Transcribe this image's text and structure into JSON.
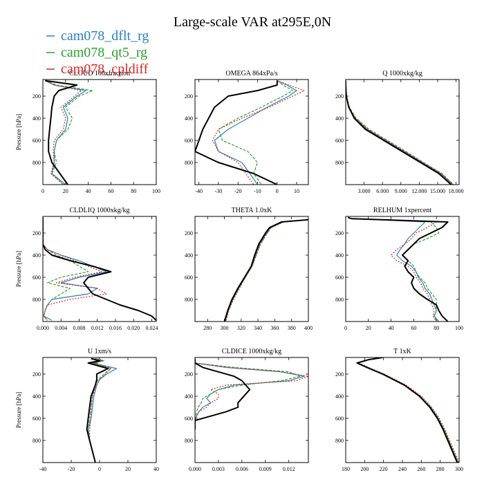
{
  "title": "Large-scale VAR at295E,0N",
  "colors": {
    "dflt": "#2a7fc0",
    "qt5": "#2ca02c",
    "cpldiff": "#d62728",
    "obs": "#000000"
  },
  "legend": [
    {
      "name": "cam078_dflt_rg",
      "color": "#2a7fc0"
    },
    {
      "name": "cam078_qt5_rg",
      "color": "#2ca02c"
    },
    {
      "name": "cam078_cpldiff",
      "color": "#d62728"
    }
  ],
  "chart_data": [
    {
      "type": "line",
      "title": "CLOUD 100xfraction",
      "ylabel": "Pressure [hPa]",
      "xlim": [
        0,
        100
      ],
      "ylim": [
        1000,
        50
      ],
      "xticks": [
        "0",
        "20",
        "40",
        "60",
        "80",
        "100"
      ],
      "xtickvals": [
        0,
        20,
        40,
        60,
        80,
        100
      ],
      "yticks": [
        "200",
        "400",
        "600",
        "800"
      ],
      "ytickvals": [
        200,
        400,
        600,
        800
      ],
      "y": [
        60,
        100,
        150,
        200,
        300,
        400,
        500,
        600,
        700,
        800,
        900,
        1000
      ],
      "series": [
        {
          "name": "cam078_dflt_rg",
          "x": [
            2,
            10,
            38,
            30,
            18,
            22,
            20,
            12,
            10,
            10,
            8,
            20
          ]
        },
        {
          "name": "cam078_qt5_rg",
          "x": [
            2,
            12,
            44,
            32,
            20,
            26,
            22,
            12,
            10,
            12,
            8,
            18
          ]
        },
        {
          "name": "cam078_cpldiff",
          "x": [
            2,
            10,
            34,
            28,
            16,
            20,
            18,
            10,
            9,
            10,
            7,
            18
          ]
        },
        {
          "name": "obs",
          "x": [
            2,
            30,
            14,
            10,
            8,
            7,
            6,
            5,
            5,
            8,
            15,
            22
          ]
        }
      ]
    },
    {
      "type": "line",
      "title": "OMEGA  864xPa/s",
      "ylabel": "",
      "xlim": [
        -42,
        16
      ],
      "ylim": [
        1000,
        50
      ],
      "xticks": [
        "-40",
        "-30",
        "-20",
        "-10",
        "0",
        "10"
      ],
      "xtickvals": [
        -40,
        -30,
        -20,
        -10,
        0,
        10
      ],
      "yticks": [
        "200",
        "400",
        "600",
        "800"
      ],
      "ytickvals": [
        200,
        400,
        600,
        800
      ],
      "y": [
        60,
        100,
        150,
        200,
        300,
        400,
        500,
        600,
        700,
        800,
        900,
        1000
      ],
      "series": [
        {
          "name": "cam078_dflt_rg",
          "x": [
            0,
            5,
            10,
            6,
            -5,
            -15,
            -25,
            -32,
            -30,
            -18,
            -14,
            -10
          ]
        },
        {
          "name": "cam078_qt5_rg",
          "x": [
            0,
            3,
            8,
            3,
            -8,
            -20,
            -30,
            -28,
            -15,
            -10,
            -12,
            -8
          ]
        },
        {
          "name": "cam078_cpldiff",
          "x": [
            0,
            6,
            14,
            8,
            -4,
            -18,
            -30,
            -33,
            -30,
            -20,
            -16,
            -12
          ]
        },
        {
          "name": "obs",
          "x": [
            0,
            0,
            -10,
            -25,
            -32,
            -35,
            -38,
            -40,
            -42,
            -30,
            -12,
            0
          ]
        }
      ]
    },
    {
      "type": "line",
      "title": "Q  1000xkg/kg",
      "ylabel": "",
      "xlim": [
        0,
        18.5
      ],
      "ylim": [
        1000,
        50
      ],
      "xticks": [
        "3.000",
        "6.000",
        "9.000",
        "12.000",
        "15.000",
        "18.000"
      ],
      "xtickvals": [
        3,
        6,
        9,
        12,
        15,
        18
      ],
      "yticks": [
        "200",
        "400",
        "600",
        "800"
      ],
      "ytickvals": [
        200,
        400,
        600,
        800
      ],
      "y": [
        60,
        100,
        150,
        200,
        300,
        400,
        500,
        600,
        700,
        800,
        900,
        1000
      ],
      "series": [
        {
          "name": "cam078_dflt_rg",
          "x": [
            0,
            0,
            0.05,
            0.1,
            0.5,
            1.5,
            3.5,
            6.5,
            9.5,
            12.5,
            15.5,
            17.5
          ]
        },
        {
          "name": "cam078_qt5_rg",
          "x": [
            0,
            0,
            0.05,
            0.1,
            0.6,
            1.7,
            3.8,
            6.8,
            9.8,
            12.7,
            15.7,
            17.6
          ]
        },
        {
          "name": "cam078_cpldiff",
          "x": [
            0,
            0,
            0.05,
            0.1,
            0.5,
            1.6,
            3.6,
            6.6,
            9.6,
            12.6,
            15.6,
            17.5
          ]
        },
        {
          "name": "obs",
          "x": [
            0,
            0,
            0.05,
            0.1,
            0.5,
            1.4,
            3.2,
            6.2,
            9.2,
            12.2,
            15.2,
            17.2
          ]
        }
      ]
    },
    {
      "type": "line",
      "title": "CLDLIQ  1000xkg/kg",
      "ylabel": "Pressure [hPa]",
      "xlim": [
        0,
        0.025
      ],
      "ylim": [
        1000,
        50
      ],
      "xticks": [
        "0.000",
        "0.004",
        "0.008",
        "0.012",
        "0.016",
        "0.020",
        "0.024"
      ],
      "xtickvals": [
        0,
        0.004,
        0.008,
        0.012,
        0.016,
        0.02,
        0.024
      ],
      "yticks": [
        "200",
        "400",
        "600",
        "800"
      ],
      "ytickvals": [
        200,
        400,
        600,
        800
      ],
      "y": [
        60,
        100,
        150,
        200,
        300,
        350,
        400,
        450,
        500,
        550,
        600,
        650,
        700,
        750,
        800,
        850,
        900,
        950,
        990
      ],
      "series": [
        {
          "name": "cam078_dflt_rg",
          "x": [
            0,
            0,
            0,
            0,
            0,
            0.001,
            0.004,
            0.008,
            0.011,
            0.014,
            0.008,
            0.004,
            0.012,
            0.01,
            0.002,
            0.001,
            0.0005,
            0.0002,
            0.002
          ]
        },
        {
          "name": "cam078_qt5_rg",
          "x": [
            0,
            0,
            0,
            0,
            0,
            0.001,
            0.003,
            0.006,
            0.008,
            0.01,
            0.004,
            0.001,
            0.006,
            0.004,
            0.002,
            0.001,
            0.0005,
            0.0002,
            0.001
          ]
        },
        {
          "name": "cam078_cpldiff",
          "x": [
            0,
            0,
            0,
            0,
            0,
            0.001,
            0.004,
            0.007,
            0.01,
            0.013,
            0.007,
            0.003,
            0.012,
            0.014,
            0.006,
            0.001,
            0.0005,
            0.0002,
            0.001
          ]
        },
        {
          "name": "obs",
          "x": [
            0,
            0,
            0,
            0,
            0,
            0.0005,
            0.002,
            0.006,
            0.011,
            0.015,
            0.01,
            0.009,
            0.01,
            0.011,
            0.014,
            0.017,
            0.021,
            0.024,
            0.025
          ]
        }
      ]
    },
    {
      "type": "line",
      "title": "THETA  1.0xK",
      "ylabel": "",
      "xlim": [
        265,
        400
      ],
      "ylim": [
        1000,
        50
      ],
      "xticks": [
        "280",
        "300",
        "320",
        "340",
        "360",
        "380",
        "400"
      ],
      "xtickvals": [
        280,
        300,
        320,
        340,
        360,
        380,
        400
      ],
      "yticks": [
        "200",
        "400",
        "600",
        "800"
      ],
      "ytickvals": [
        200,
        400,
        600,
        800
      ],
      "y": [
        80,
        100,
        150,
        200,
        300,
        400,
        500,
        600,
        700,
        800,
        900,
        1000
      ],
      "series": [
        {
          "name": "cam078_dflt_rg",
          "x": [
            400,
            370,
            355,
            350,
            342,
            337,
            333,
            325,
            317,
            310,
            305,
            301
          ]
        },
        {
          "name": "cam078_qt5_rg",
          "x": [
            400,
            370,
            356,
            351,
            343,
            338,
            333,
            325,
            317,
            310,
            305,
            301
          ]
        },
        {
          "name": "cam078_cpldiff",
          "x": [
            400,
            371,
            356,
            351,
            343,
            338,
            333,
            325,
            318,
            311,
            305,
            302
          ]
        },
        {
          "name": "obs",
          "x": [
            400,
            368,
            354,
            349,
            341,
            336,
            332,
            324,
            316,
            309,
            304,
            300
          ]
        }
      ]
    },
    {
      "type": "line",
      "title": "RELHUM  1xpercent",
      "ylabel": "",
      "xlim": [
        0,
        100
      ],
      "ylim": [
        1000,
        50
      ],
      "xticks": [
        "0",
        "20",
        "40",
        "60",
        "80",
        "100"
      ],
      "xtickvals": [
        0,
        20,
        40,
        60,
        80,
        100
      ],
      "yticks": [
        "200",
        "400",
        "600",
        "800"
      ],
      "ytickvals": [
        200,
        400,
        600,
        800
      ],
      "y": [
        60,
        70,
        100,
        150,
        200,
        250,
        300,
        350,
        400,
        450,
        500,
        550,
        600,
        650,
        700,
        750,
        800,
        850,
        900,
        950,
        1000
      ],
      "series": [
        {
          "name": "cam078_dflt_rg",
          "x": [
            2,
            5,
            70,
            65,
            60,
            55,
            52,
            48,
            45,
            50,
            58,
            62,
            64,
            68,
            70,
            74,
            76,
            78,
            80,
            78,
            82
          ]
        },
        {
          "name": "cam078_qt5_rg",
          "x": [
            2,
            5,
            75,
            80,
            82,
            72,
            60,
            55,
            50,
            55,
            60,
            62,
            65,
            70,
            72,
            76,
            80,
            80,
            80,
            78,
            80
          ]
        },
        {
          "name": "cam078_cpldiff",
          "x": [
            2,
            5,
            80,
            72,
            62,
            58,
            52,
            45,
            40,
            45,
            55,
            60,
            62,
            66,
            68,
            72,
            74,
            76,
            78,
            77,
            80
          ]
        },
        {
          "name": "obs",
          "x": [
            2,
            5,
            90,
            85,
            75,
            65,
            60,
            55,
            50,
            55,
            52,
            55,
            60,
            58,
            60,
            65,
            72,
            80,
            82,
            85,
            90
          ]
        }
      ]
    },
    {
      "type": "line",
      "title": "U  1xm/s",
      "ylabel": "Pressure [hPa]",
      "xlim": [
        -40,
        40
      ],
      "ylim": [
        1000,
        50
      ],
      "xticks": [
        "-40",
        "-20",
        "0",
        "20",
        "40"
      ],
      "xtickvals": [
        -40,
        -20,
        0,
        20,
        40
      ],
      "yticks": [
        "200",
        "400",
        "600",
        "800"
      ],
      "ytickvals": [
        200,
        400,
        600,
        800
      ],
      "y": [
        60,
        80,
        100,
        150,
        200,
        250,
        300,
        400,
        500,
        600,
        700,
        800,
        900,
        1000
      ],
      "series": [
        {
          "name": "cam078_dflt_rg",
          "x": [
            -2,
            3,
            -5,
            12,
            5,
            0,
            -2,
            -4,
            -5,
            -6,
            -8,
            -7,
            -5,
            -3
          ]
        },
        {
          "name": "cam078_qt5_rg",
          "x": [
            -4,
            2,
            -3,
            8,
            3,
            -1,
            -3,
            -5,
            -6,
            -7,
            -8,
            -7,
            -5,
            -3
          ]
        },
        {
          "name": "cam078_cpldiff",
          "x": [
            -3,
            2,
            -4,
            8,
            4,
            0,
            -2,
            -5,
            -6,
            -6,
            -7,
            -7,
            -5,
            -3
          ]
        },
        {
          "name": "obs",
          "x": [
            -6,
            0,
            -8,
            6,
            -2,
            -2,
            -3,
            -6,
            -7,
            -8,
            -9,
            -7,
            -5,
            -3
          ]
        }
      ]
    },
    {
      "type": "line",
      "title": "CLDICE  1000xkg/kg",
      "ylabel": "",
      "xlim": [
        0,
        0.0145
      ],
      "ylim": [
        1000,
        50
      ],
      "xticks": [
        "0.000",
        "0.003",
        "0.006",
        "0.009",
        "0.012"
      ],
      "xtickvals": [
        0,
        0.003,
        0.006,
        0.009,
        0.012
      ],
      "yticks": [
        "200",
        "400",
        "600",
        "800"
      ],
      "ytickvals": [
        200,
        400,
        600,
        800
      ],
      "y": [
        60,
        100,
        140,
        180,
        220,
        260,
        300,
        340,
        380,
        420,
        460,
        500,
        540,
        580,
        620,
        660,
        700
      ],
      "series": [
        {
          "name": "cam078_dflt_rg",
          "x": [
            0,
            0,
            0.004,
            0.011,
            0.014,
            0.012,
            0.005,
            0.003,
            0.002,
            0.0015,
            0.002,
            0.001,
            0.0005,
            0.0002,
            0,
            0,
            0
          ]
        },
        {
          "name": "cam078_qt5_rg",
          "x": [
            0,
            0,
            0.005,
            0.012,
            0.0135,
            0.011,
            0.006,
            0.003,
            0.002,
            0.001,
            0.0008,
            0.0004,
            0.0002,
            0.0001,
            0,
            0,
            0
          ]
        },
        {
          "name": "cam078_cpldiff",
          "x": [
            0,
            0,
            0.004,
            0.011,
            0.0145,
            0.013,
            0.004,
            0.002,
            0.003,
            0.003,
            0.002,
            0.0015,
            0.0005,
            0.0002,
            0,
            0,
            0
          ]
        },
        {
          "name": "obs",
          "x": [
            0,
            0,
            0.001,
            0.003,
            0.005,
            0.006,
            0.0065,
            0.007,
            0.0065,
            0.006,
            0.0055,
            0.0055,
            0.004,
            0.002,
            0,
            0,
            0
          ]
        }
      ]
    },
    {
      "type": "line",
      "title": "T  1xK",
      "ylabel": "",
      "xlim": [
        180,
        300
      ],
      "ylim": [
        1000,
        50
      ],
      "xticks": [
        "180",
        "200",
        "220",
        "240",
        "260",
        "280",
        "300"
      ],
      "xtickvals": [
        180,
        200,
        220,
        240,
        260,
        280,
        300
      ],
      "yticks": [
        "200",
        "400",
        "600",
        "800"
      ],
      "ytickvals": [
        200,
        400,
        600,
        800
      ],
      "y": [
        50,
        70,
        100,
        150,
        200,
        300,
        400,
        500,
        600,
        700,
        800,
        900,
        1000
      ],
      "series": [
        {
          "name": "cam078_dflt_rg",
          "x": [
            220,
            205,
            193,
            206,
            220,
            243,
            259,
            270,
            278,
            284,
            289,
            294,
            299
          ]
        },
        {
          "name": "cam078_qt5_rg",
          "x": [
            220,
            205,
            193,
            206,
            220,
            243,
            259,
            270,
            278,
            284,
            289,
            294,
            299
          ]
        },
        {
          "name": "cam078_cpldiff",
          "x": [
            220,
            205,
            194,
            207,
            221,
            244,
            260,
            271,
            279,
            285,
            290,
            295,
            300
          ]
        },
        {
          "name": "obs",
          "x": [
            219,
            204,
            192,
            205,
            219,
            242,
            258,
            269,
            277,
            283,
            288,
            293,
            298
          ]
        }
      ]
    }
  ]
}
